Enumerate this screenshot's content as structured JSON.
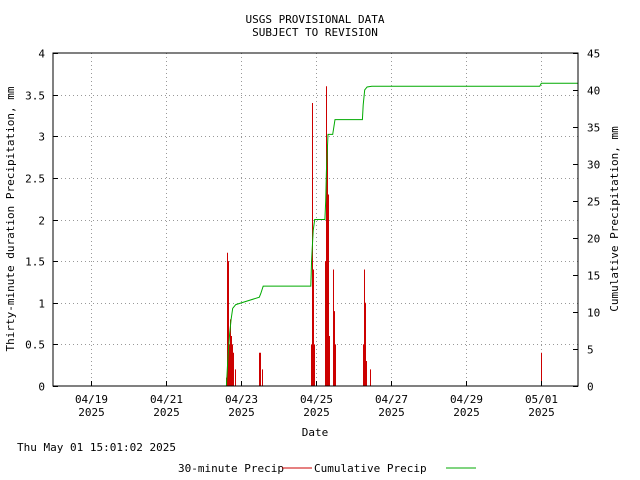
{
  "chart_data": {
    "type": "line",
    "title": "USGS PROVISIONAL DATA",
    "subtitle": "SUBJECT TO REVISION",
    "xlabel": "Date",
    "ylabel_left": "Thirty-minute duration Precipitation, mm",
    "ylabel_right": "Cumulative Precipitation, mm",
    "timestamp": "Thu May 01 15:01:02 2025",
    "x_range": [
      "2025-04-18 00:00",
      "2025-05-02 00:00"
    ],
    "ylim_left": [
      0,
      4
    ],
    "ylim_right": [
      0,
      45
    ],
    "left_ticks": [
      "0",
      "0.5",
      "1",
      "1.5",
      "2",
      "2.5",
      "3",
      "3.5",
      "4"
    ],
    "right_ticks": [
      "0",
      "5",
      "10",
      "15",
      "20",
      "25",
      "30",
      "35",
      "40",
      "45"
    ],
    "x_ticks": [
      {
        "date": "2025-04-19",
        "label": "04/19",
        "year": "2025"
      },
      {
        "date": "2025-04-21",
        "label": "04/21",
        "year": "2025"
      },
      {
        "date": "2025-04-23",
        "label": "04/23",
        "year": "2025"
      },
      {
        "date": "2025-04-25",
        "label": "04/25",
        "year": "2025"
      },
      {
        "date": "2025-04-27",
        "label": "04/27",
        "year": "2025"
      },
      {
        "date": "2025-04-29",
        "label": "04/29",
        "year": "2025"
      },
      {
        "date": "2025-05-01",
        "label": "05/01",
        "year": "2025"
      }
    ],
    "grid": true,
    "legend_position": "bottom",
    "series": [
      {
        "name": "30-minute Precip",
        "axis": "left",
        "color": "#cc0000",
        "style": "impulse",
        "points": [
          [
            "2025-04-22 15:00",
            0.1
          ],
          [
            "2025-04-22 15:30",
            1.6
          ],
          [
            "2025-04-22 16:00",
            1.5
          ],
          [
            "2025-04-22 16:30",
            0.5
          ],
          [
            "2025-04-22 17:00",
            0.8
          ],
          [
            "2025-04-22 17:30",
            0.7
          ],
          [
            "2025-04-22 18:00",
            0.6
          ],
          [
            "2025-04-22 18:30",
            0.5
          ],
          [
            "2025-04-22 19:00",
            0.4
          ],
          [
            "2025-04-22 19:30",
            0.3
          ],
          [
            "2025-04-22 20:30",
            0.2
          ],
          [
            "2025-04-23 12:00",
            0.4
          ],
          [
            "2025-04-23 12:30",
            0.4
          ],
          [
            "2025-04-23 14:00",
            0.2
          ],
          [
            "2025-04-24 21:00",
            0.5
          ],
          [
            "2025-04-24 21:30",
            3.4
          ],
          [
            "2025-04-24 22:00",
            2.3
          ],
          [
            "2025-04-24 22:30",
            1.4
          ],
          [
            "2025-04-24 23:00",
            0.5
          ],
          [
            "2025-04-25 06:00",
            1.5
          ],
          [
            "2025-04-25 06:30",
            0.9
          ],
          [
            "2025-04-25 07:00",
            3.6
          ],
          [
            "2025-04-25 07:30",
            2.9
          ],
          [
            "2025-04-25 08:00",
            2.3
          ],
          [
            "2025-04-25 08:30",
            0.6
          ],
          [
            "2025-04-25 11:30",
            1.4
          ],
          [
            "2025-04-25 12:00",
            0.9
          ],
          [
            "2025-04-25 12:30",
            0.5
          ],
          [
            "2025-04-26 06:30",
            0.5
          ],
          [
            "2025-04-26 07:00",
            1.4
          ],
          [
            "2025-04-26 07:30",
            1.0
          ],
          [
            "2025-04-26 08:00",
            0.3
          ],
          [
            "2025-04-26 11:00",
            0.2
          ],
          [
            "2025-05-01 00:00",
            0.4
          ],
          [
            "2025-05-01 00:30",
            0.2
          ]
        ]
      },
      {
        "name": "Cumulative Precip",
        "axis": "right",
        "color": "#00aa00",
        "style": "line",
        "points": [
          [
            "2025-04-18 00:00",
            0
          ],
          [
            "2025-04-22 15:00",
            0
          ],
          [
            "2025-04-22 16:00",
            4
          ],
          [
            "2025-04-22 17:00",
            7
          ],
          [
            "2025-04-22 18:00",
            9
          ],
          [
            "2025-04-22 19:00",
            10.5
          ],
          [
            "2025-04-22 21:00",
            11
          ],
          [
            "2025-04-23 12:00",
            12
          ],
          [
            "2025-04-23 13:00",
            12.5
          ],
          [
            "2025-04-23 14:30",
            13.5
          ],
          [
            "2025-04-24 21:00",
            13.5
          ],
          [
            "2025-04-24 21:30",
            17
          ],
          [
            "2025-04-24 22:30",
            21
          ],
          [
            "2025-04-24 23:30",
            22.5
          ],
          [
            "2025-04-25 06:00",
            22.5
          ],
          [
            "2025-04-25 06:30",
            25
          ],
          [
            "2025-04-25 07:00",
            29
          ],
          [
            "2025-04-25 08:00",
            34
          ],
          [
            "2025-04-25 11:00",
            34
          ],
          [
            "2025-04-25 12:30",
            36
          ],
          [
            "2025-04-26 06:00",
            36
          ],
          [
            "2025-04-26 06:30",
            38
          ],
          [
            "2025-04-26 07:30",
            40
          ],
          [
            "2025-04-26 09:00",
            40.4
          ],
          [
            "2025-04-26 12:00",
            40.5
          ],
          [
            "2025-04-30 23:30",
            40.5
          ],
          [
            "2025-05-01 00:30",
            40.9
          ],
          [
            "2025-05-01 15:00",
            40.9
          ],
          [
            "2025-05-02 00:00",
            40.9
          ]
        ]
      }
    ]
  }
}
